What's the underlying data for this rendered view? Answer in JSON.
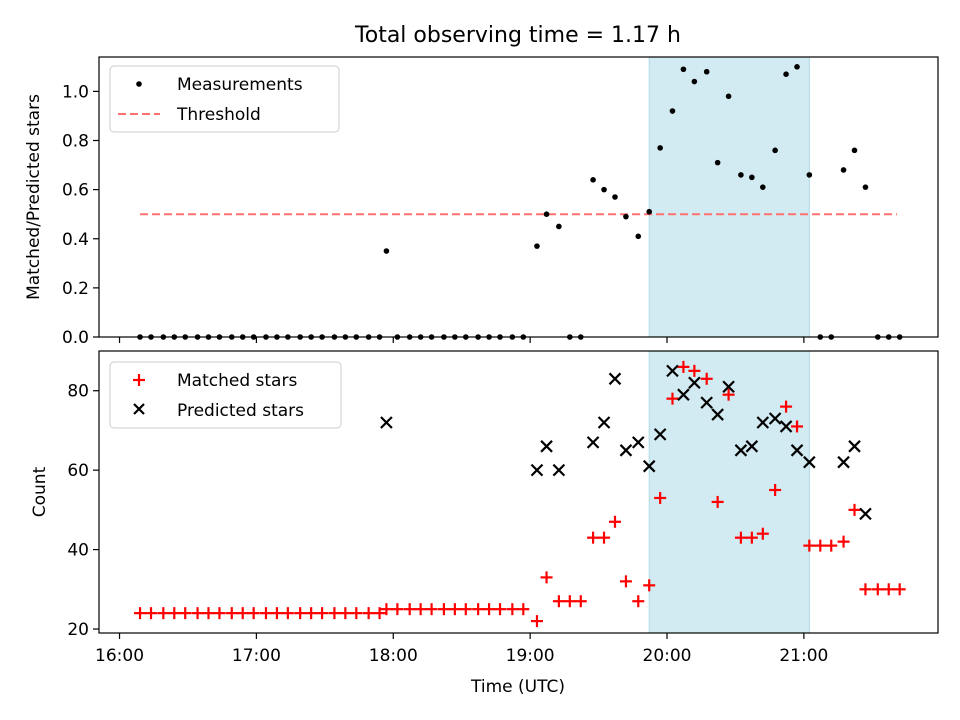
{
  "title": "Total observing time = 1.17 h",
  "chart_data": [
    {
      "type": "scatter",
      "ylabel": "Matched/Predicted stars",
      "ylim": [
        0,
        1.14
      ],
      "yticks": [
        0.0,
        0.2,
        0.4,
        0.6,
        0.8,
        1.0
      ],
      "ytick_labels": [
        "0.0",
        "0.2",
        "0.4",
        "0.6",
        "0.8",
        "1.0"
      ],
      "legend": [
        "Measurements",
        "Threshold"
      ],
      "legend_position": "top-left",
      "threshold": 0.5,
      "threshold_x_range": [
        16.15,
        21.68
      ],
      "highlight_x_range": [
        19.87,
        21.04
      ],
      "colors": {
        "points": "#000000",
        "threshold": "#ff7070",
        "highlight": "#add8e6"
      },
      "points": [
        [
          16.15,
          0
        ],
        [
          16.23,
          0
        ],
        [
          16.32,
          0
        ],
        [
          16.4,
          0
        ],
        [
          16.48,
          0
        ],
        [
          16.57,
          0
        ],
        [
          16.65,
          0
        ],
        [
          16.73,
          0
        ],
        [
          16.82,
          0
        ],
        [
          16.9,
          0
        ],
        [
          16.98,
          0
        ],
        [
          17.07,
          0
        ],
        [
          17.15,
          0
        ],
        [
          17.23,
          0
        ],
        [
          17.32,
          0
        ],
        [
          17.4,
          0
        ],
        [
          17.48,
          0
        ],
        [
          17.57,
          0
        ],
        [
          17.65,
          0
        ],
        [
          17.73,
          0
        ],
        [
          17.82,
          0
        ],
        [
          17.9,
          0
        ],
        [
          17.95,
          0.35
        ],
        [
          18.03,
          0
        ],
        [
          18.12,
          0
        ],
        [
          18.2,
          0
        ],
        [
          18.28,
          0
        ],
        [
          18.37,
          0
        ],
        [
          18.45,
          0
        ],
        [
          18.53,
          0
        ],
        [
          18.62,
          0
        ],
        [
          18.7,
          0
        ],
        [
          18.78,
          0
        ],
        [
          18.87,
          0
        ],
        [
          18.95,
          0
        ],
        [
          19.05,
          0.37
        ],
        [
          19.12,
          0.5
        ],
        [
          19.21,
          0.45
        ],
        [
          19.29,
          0
        ],
        [
          19.37,
          0
        ],
        [
          19.46,
          0.64
        ],
        [
          19.54,
          0.6
        ],
        [
          19.62,
          0.57
        ],
        [
          19.7,
          0.49
        ],
        [
          19.79,
          0.41
        ],
        [
          19.87,
          0.51
        ],
        [
          19.95,
          0.77
        ],
        [
          20.04,
          0.92
        ],
        [
          20.12,
          1.09
        ],
        [
          20.2,
          1.04
        ],
        [
          20.29,
          1.08
        ],
        [
          20.37,
          0.71
        ],
        [
          20.45,
          0.98
        ],
        [
          20.54,
          0.66
        ],
        [
          20.62,
          0.65
        ],
        [
          20.7,
          0.61
        ],
        [
          20.79,
          0.76
        ],
        [
          20.87,
          1.07
        ],
        [
          20.95,
          1.1
        ],
        [
          21.04,
          0.66
        ],
        [
          21.12,
          0
        ],
        [
          21.2,
          0
        ],
        [
          21.29,
          0.68
        ],
        [
          21.37,
          0.76
        ],
        [
          21.45,
          0.61
        ],
        [
          21.54,
          0
        ],
        [
          21.62,
          0
        ],
        [
          21.7,
          0
        ]
      ]
    },
    {
      "type": "scatter",
      "xlabel": "Time (UTC)",
      "ylabel": "Count",
      "ylim": [
        19,
        90
      ],
      "yticks": [
        20,
        40,
        60,
        80
      ],
      "ytick_labels": [
        "20",
        "40",
        "60",
        "80"
      ],
      "xlim": [
        15.85,
        21.98
      ],
      "xticks": [
        16,
        17,
        18,
        19,
        20,
        21
      ],
      "xtick_labels": [
        "16:00",
        "17:00",
        "18:00",
        "19:00",
        "20:00",
        "21:00"
      ],
      "legend": [
        "Matched stars",
        "Predicted stars"
      ],
      "legend_position": "top-left",
      "highlight_x_range": [
        19.87,
        21.04
      ],
      "colors": {
        "matched": "#ff0000",
        "predicted": "#000000",
        "highlight": "#add8e6"
      },
      "series": [
        {
          "name": "Matched stars",
          "points": [
            [
              16.15,
              24
            ],
            [
              16.23,
              24
            ],
            [
              16.32,
              24
            ],
            [
              16.4,
              24
            ],
            [
              16.48,
              24
            ],
            [
              16.57,
              24
            ],
            [
              16.65,
              24
            ],
            [
              16.73,
              24
            ],
            [
              16.82,
              24
            ],
            [
              16.9,
              24
            ],
            [
              16.98,
              24
            ],
            [
              17.07,
              24
            ],
            [
              17.15,
              24
            ],
            [
              17.23,
              24
            ],
            [
              17.32,
              24
            ],
            [
              17.4,
              24
            ],
            [
              17.48,
              24
            ],
            [
              17.57,
              24
            ],
            [
              17.65,
              24
            ],
            [
              17.73,
              24
            ],
            [
              17.82,
              24
            ],
            [
              17.9,
              24
            ],
            [
              17.95,
              25
            ],
            [
              18.03,
              25
            ],
            [
              18.12,
              25
            ],
            [
              18.2,
              25
            ],
            [
              18.28,
              25
            ],
            [
              18.37,
              25
            ],
            [
              18.45,
              25
            ],
            [
              18.53,
              25
            ],
            [
              18.62,
              25
            ],
            [
              18.7,
              25
            ],
            [
              18.78,
              25
            ],
            [
              18.87,
              25
            ],
            [
              18.95,
              25
            ],
            [
              19.05,
              22
            ],
            [
              19.12,
              33
            ],
            [
              19.21,
              27
            ],
            [
              19.29,
              27
            ],
            [
              19.37,
              27
            ],
            [
              19.46,
              43
            ],
            [
              19.54,
              43
            ],
            [
              19.62,
              47
            ],
            [
              19.7,
              32
            ],
            [
              19.79,
              27
            ],
            [
              19.87,
              31
            ],
            [
              19.95,
              53
            ],
            [
              20.04,
              78
            ],
            [
              20.12,
              86
            ],
            [
              20.2,
              85
            ],
            [
              20.29,
              83
            ],
            [
              20.37,
              52
            ],
            [
              20.45,
              79
            ],
            [
              20.54,
              43
            ],
            [
              20.62,
              43
            ],
            [
              20.7,
              44
            ],
            [
              20.79,
              55
            ],
            [
              20.87,
              76
            ],
            [
              20.95,
              71
            ],
            [
              21.04,
              41
            ],
            [
              21.12,
              41
            ],
            [
              21.2,
              41
            ],
            [
              21.29,
              42
            ],
            [
              21.37,
              50
            ],
            [
              21.45,
              30
            ],
            [
              21.54,
              30
            ],
            [
              21.62,
              30
            ],
            [
              21.7,
              30
            ]
          ]
        },
        {
          "name": "Predicted stars",
          "points": [
            [
              17.95,
              72
            ],
            [
              19.05,
              60
            ],
            [
              19.12,
              66
            ],
            [
              19.21,
              60
            ],
            [
              19.46,
              67
            ],
            [
              19.54,
              72
            ],
            [
              19.62,
              83
            ],
            [
              19.7,
              65
            ],
            [
              19.79,
              67
            ],
            [
              19.87,
              61
            ],
            [
              19.95,
              69
            ],
            [
              20.04,
              85
            ],
            [
              20.12,
              79
            ],
            [
              20.2,
              82
            ],
            [
              20.29,
              77
            ],
            [
              20.37,
              74
            ],
            [
              20.45,
              81
            ],
            [
              20.54,
              65
            ],
            [
              20.62,
              66
            ],
            [
              20.7,
              72
            ],
            [
              20.79,
              73
            ],
            [
              20.87,
              71
            ],
            [
              20.95,
              65
            ],
            [
              21.04,
              62
            ],
            [
              21.29,
              62
            ],
            [
              21.37,
              66
            ],
            [
              21.45,
              49
            ]
          ]
        }
      ]
    }
  ]
}
